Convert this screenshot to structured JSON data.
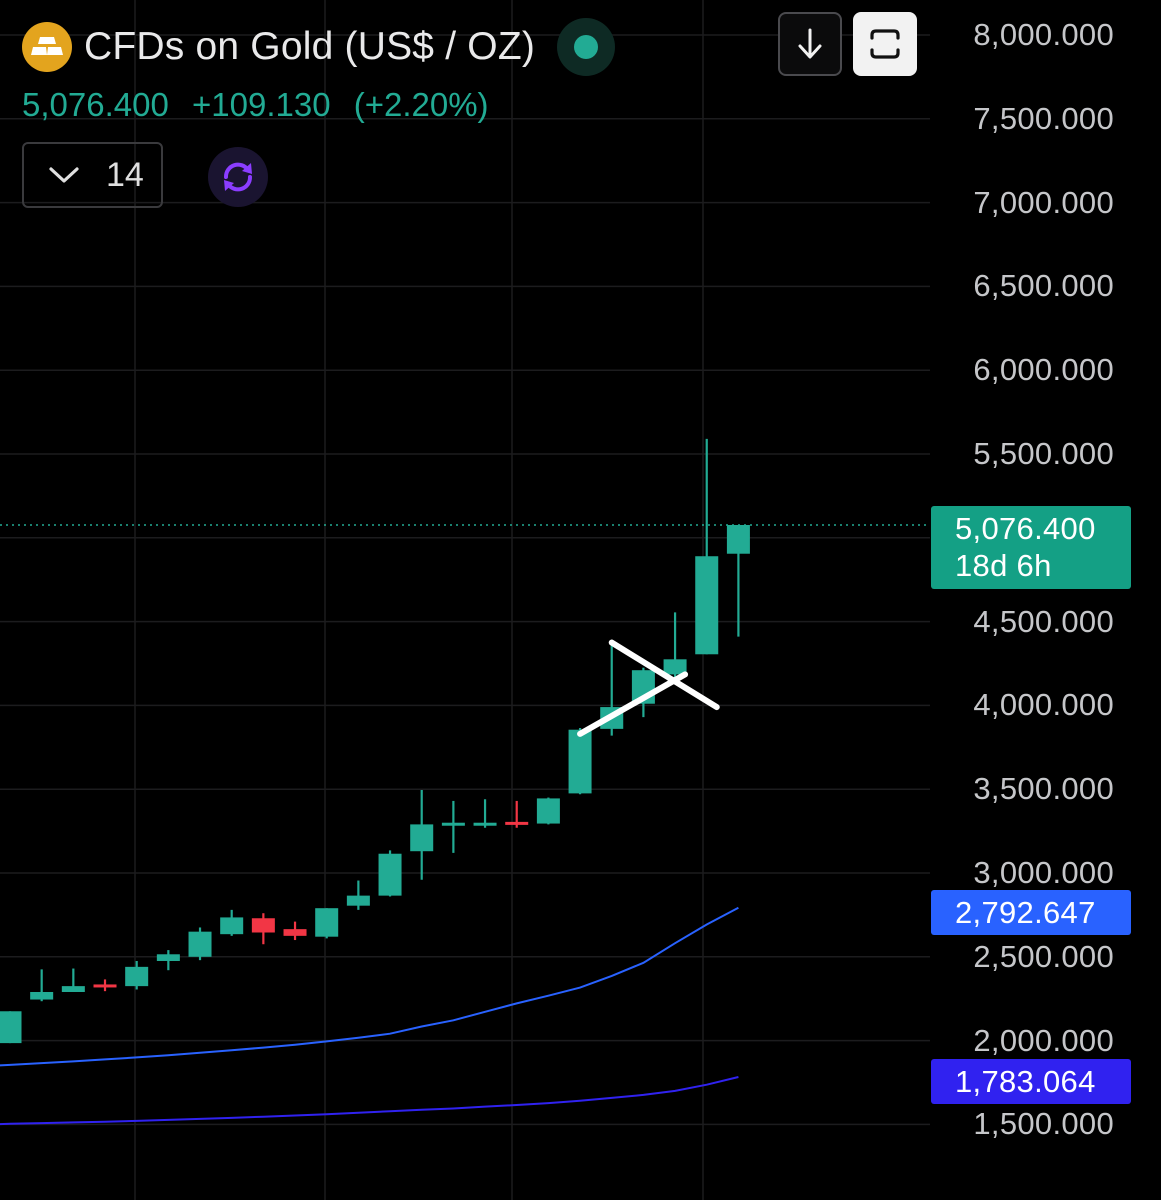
{
  "header": {
    "title": "CFDs on Gold (US$ / OZ)",
    "last_price": "5,076.400",
    "change": "+109.130",
    "change_pct": "(+2.20%)",
    "collapsed_count": "14"
  },
  "icons": {
    "logo": "gold-bars-icon",
    "status": "market-open-dot-icon",
    "collapse": "chevron-down-icon",
    "sync": "sync-icon",
    "scroll": "arrow-down-icon",
    "screenshot": "screenshot-icon"
  },
  "colors": {
    "background": "#000000",
    "up": "#22ab94",
    "down": "#f23645",
    "ma_fast": "#2962ff",
    "ma_slow": "#3022f0",
    "logo": "#e3a41e",
    "grid": "#1c1c1e",
    "drawing": "#ffffff"
  },
  "price_tags": {
    "last_price": "5,076.400",
    "countdown": "18d 6h",
    "ma_fast": "2,792.647",
    "ma_slow": "1,783.064"
  },
  "chart_data": {
    "type": "candlestick",
    "title": "CFDs on Gold (US$ / OZ)",
    "y_axis_labels": [
      "8,000.000",
      "7,500.000",
      "7,000.000",
      "6,500.000",
      "6,000.000",
      "5,500.000",
      "5,000.000",
      "4,500.000",
      "4,000.000",
      "3,500.000",
      "3,000.000",
      "2,500.000",
      "2,000.000",
      "1,500.000"
    ],
    "y_tick_values": [
      8000,
      7500,
      7000,
      6500,
      6000,
      5500,
      5000,
      4500,
      4000,
      3500,
      3000,
      2500,
      2000,
      1500
    ],
    "ylim": [
      1000,
      8220
    ],
    "grid": true,
    "last_price": 5076.4,
    "candles": [
      {
        "o": 1985,
        "h": 2175,
        "l": 1985,
        "c": 2175
      },
      {
        "o": 2245,
        "h": 2425,
        "l": 2235,
        "c": 2290
      },
      {
        "o": 2290,
        "h": 2430,
        "l": 2290,
        "c": 2325
      },
      {
        "o": 2335,
        "h": 2365,
        "l": 2295,
        "c": 2320
      },
      {
        "o": 2325,
        "h": 2475,
        "l": 2305,
        "c": 2440
      },
      {
        "o": 2475,
        "h": 2540,
        "l": 2420,
        "c": 2515
      },
      {
        "o": 2500,
        "h": 2675,
        "l": 2480,
        "c": 2650
      },
      {
        "o": 2635,
        "h": 2780,
        "l": 2625,
        "c": 2735
      },
      {
        "o": 2730,
        "h": 2760,
        "l": 2575,
        "c": 2645
      },
      {
        "o": 2665,
        "h": 2710,
        "l": 2600,
        "c": 2625
      },
      {
        "o": 2620,
        "h": 2790,
        "l": 2610,
        "c": 2790
      },
      {
        "o": 2805,
        "h": 2955,
        "l": 2780,
        "c": 2865
      },
      {
        "o": 2865,
        "h": 3135,
        "l": 2860,
        "c": 3115
      },
      {
        "o": 3130,
        "h": 3495,
        "l": 2960,
        "c": 3290
      },
      {
        "o": 3285,
        "h": 3430,
        "l": 3120,
        "c": 3300
      },
      {
        "o": 3295,
        "h": 3440,
        "l": 3270,
        "c": 3300
      },
      {
        "o": 3305,
        "h": 3430,
        "l": 3270,
        "c": 3290
      },
      {
        "o": 3295,
        "h": 3450,
        "l": 3290,
        "c": 3445
      },
      {
        "o": 3475,
        "h": 3865,
        "l": 3470,
        "c": 3855
      },
      {
        "o": 3860,
        "h": 4375,
        "l": 3820,
        "c": 3990
      },
      {
        "o": 4010,
        "h": 4225,
        "l": 3930,
        "c": 4210
      },
      {
        "o": 4185,
        "h": 4555,
        "l": 4155,
        "c": 4275
      },
      {
        "o": 4305,
        "h": 5590,
        "l": 4305,
        "c": 4890
      },
      {
        "o": 4905,
        "h": 5076.4,
        "l": 4410,
        "c": 5076.4
      }
    ],
    "series": [
      {
        "values": [
          1846,
          1855,
          1866,
          1876,
          1888,
          1900,
          1913,
          1927,
          1942,
          1958,
          1975,
          1995,
          2017,
          2041,
          2084,
          2121,
          2172,
          2222,
          2268,
          2316,
          2386,
          2464,
          2581,
          2693,
          2792.647
        ]
      },
      {
        "values": [
          1497,
          1504,
          1508,
          1512,
          1516,
          1521,
          1527,
          1533,
          1539,
          1546,
          1553,
          1561,
          1570,
          1579,
          1587,
          1595,
          1606,
          1616,
          1627,
          1641,
          1658,
          1676,
          1700,
          1737,
          1783.064
        ]
      }
    ],
    "annotations": {
      "type": "triangle-drawing",
      "lines": [
        {
          "from": {
            "candle": 19,
            "price": 4375
          },
          "to": {
            "candle": 22,
            "price": 3990
          }
        },
        {
          "from": {
            "candle": 18,
            "price": 3830
          },
          "to": {
            "candle": 21,
            "price": 4185
          }
        }
      ]
    }
  }
}
